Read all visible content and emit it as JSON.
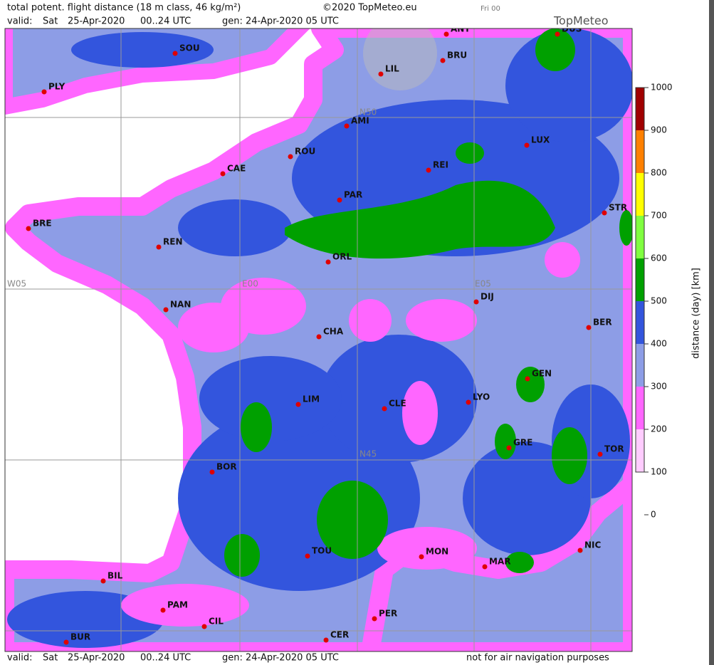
{
  "header": {
    "title": "total potent. flight distance (18 m class, 46 kg/m²)",
    "copyright": "©2020 TopMeteo.eu",
    "run": "Fri 00",
    "brand": "TopMeteo",
    "valid_label": "valid:",
    "day": "Sat",
    "date": "25-Apr-2020",
    "period": "00..24 UTC",
    "generated": "gen: 24-Apr-2020 05 UTC"
  },
  "footer": {
    "valid_label": "valid:",
    "day": "Sat",
    "date": "25-Apr-2020",
    "period": "00..24 UTC",
    "generated": "gen: 24-Apr-2020 05 UTC",
    "disclaimer": "not for air navigation purposes"
  },
  "map": {
    "grid_labels": [
      "W05",
      "E00",
      "E05",
      "N50",
      "N45"
    ],
    "cities": [
      "SOU",
      "PLY",
      "LIL",
      "ANT",
      "BRU",
      "DUS",
      "AMI",
      "LUX",
      "ROU",
      "CAE",
      "REI",
      "PAR",
      "STR",
      "BRE",
      "REN",
      "ORL",
      "DIJ",
      "NAN",
      "BER",
      "CHA",
      "GEN",
      "LIM",
      "CLE",
      "LYO",
      "GRE",
      "TOR",
      "BOR",
      "NIC",
      "TOU",
      "MON",
      "MAR",
      "BIL",
      "PAM",
      "CIL",
      "PER",
      "CER",
      "BUR"
    ]
  },
  "legend": {
    "title": "distance (day) [km]",
    "ticks": [
      1000,
      900,
      800,
      700,
      600,
      500,
      400,
      300,
      200,
      100,
      0
    ],
    "colors": [
      "#a00000",
      "#ff8000",
      "#ffff00",
      "#80ff40",
      "#00a000",
      "#3355dd",
      "#8d9de6",
      "#ff66ff",
      "#ffccff"
    ]
  }
}
